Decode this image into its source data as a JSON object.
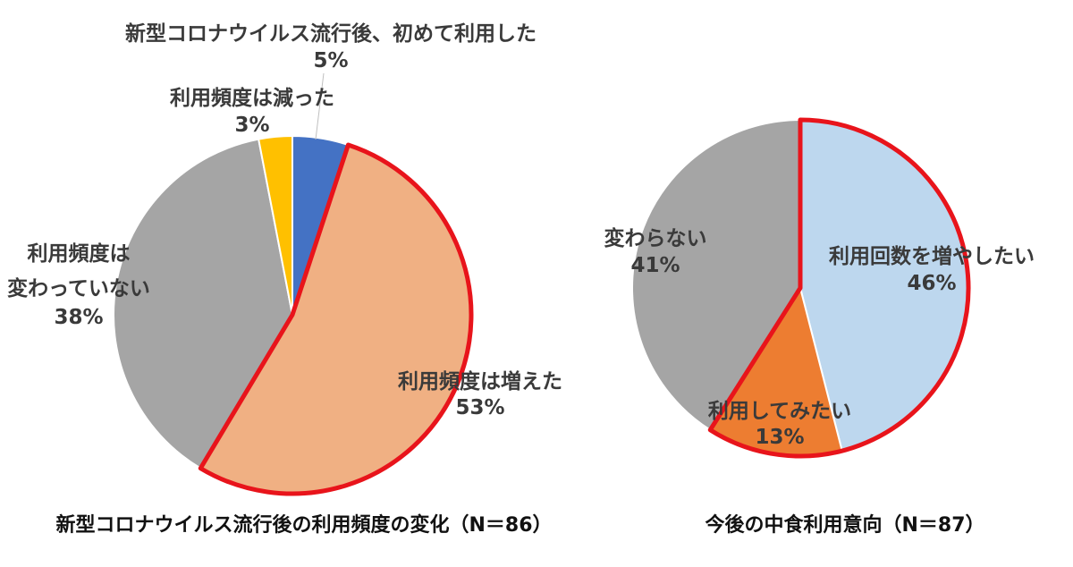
{
  "chart_data": [
    {
      "type": "pie",
      "title": "新型コロナウイルス流行後の利用頻度の変化（N＝86）",
      "slices": [
        {
          "label": "新型コロナウイルス流行後、初めて利用した",
          "value": 5,
          "value_label": "5%",
          "color": "#4472c4"
        },
        {
          "label": "利用頻度は増えた",
          "value": 53,
          "value_label": "53%",
          "color": "#f0b083",
          "highlighted": true
        },
        {
          "label": "利用頻度は変わっていない",
          "label_lines": [
            "利用頻度は",
            "変わっていない"
          ],
          "value": 38,
          "value_label": "38%",
          "color": "#a5a5a5"
        },
        {
          "label": "利用頻度は減った",
          "value": 3,
          "value_label": "3%",
          "color": "#ffc000"
        }
      ],
      "highlight_color": "#e8141b"
    },
    {
      "type": "pie",
      "title": "今後の中食利用意向（N＝87）",
      "slices": [
        {
          "label": "利用回数を増やしたい",
          "value": 46,
          "value_label": "46%",
          "color": "#bdd7ee",
          "highlighted": true
        },
        {
          "label": "利用してみたい",
          "value": 13,
          "value_label": "13%",
          "color": "#ed7d31",
          "highlighted": true
        },
        {
          "label": "変わらない",
          "value": 41,
          "value_label": "41%",
          "color": "#a5a5a5"
        }
      ],
      "highlight_color": "#e8141b"
    }
  ]
}
